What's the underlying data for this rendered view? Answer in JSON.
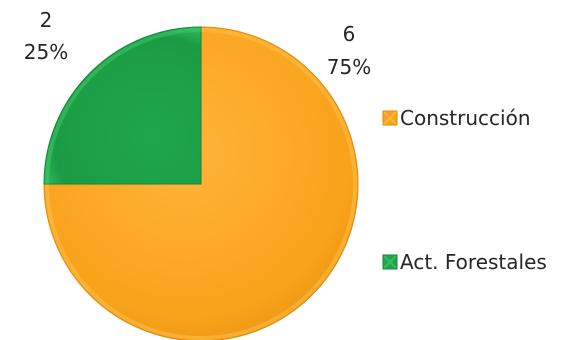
{
  "chart_data": {
    "type": "pie",
    "slices": [
      {
        "label": "Construcción",
        "value": 6,
        "value_label": "6",
        "percent_label": "75%",
        "color": "#F9A21B",
        "color_light": "#FFC04A",
        "color_dark": "#E08A0A"
      },
      {
        "label": "Act. Forestales",
        "value": 2,
        "value_label": "2",
        "percent_label": "25%",
        "color": "#1FA64A",
        "color_light": "#3CC866",
        "color_dark": "#14843A"
      }
    ],
    "legend_placement": "right",
    "start_angle_deg": 0,
    "direction": "clockwise",
    "title": ""
  }
}
